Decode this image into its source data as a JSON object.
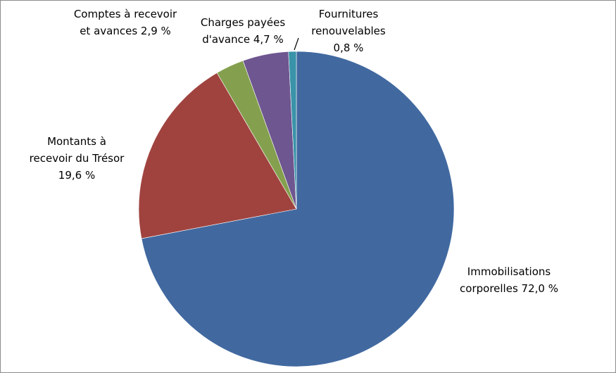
{
  "chart_data": {
    "type": "pie",
    "title": "",
    "slices": [
      {
        "name": "Immobilisations corporelles",
        "value": 72.0,
        "label_lines": [
          "Immobilisations",
          "corporelles 72,0 %"
        ],
        "color": "#4169A0"
      },
      {
        "name": "Montants à recevoir du Trésor",
        "value": 19.6,
        "label_lines": [
          "Montants à",
          "recevoir du Trésor",
          "19,6 %"
        ],
        "color": "#A0433F"
      },
      {
        "name": "Comptes à recevoir et avances",
        "value": 2.9,
        "label_lines": [
          "Comptes à recevoir",
          "et avances 2,9 %"
        ],
        "color": "#84A04E"
      },
      {
        "name": "Charges payées d'avance",
        "value": 4.7,
        "label_lines": [
          "Charges payées",
          "d'avance 4,7 %"
        ],
        "color": "#6E5690"
      },
      {
        "name": "Fournitures renouvelables",
        "value": 0.8,
        "label_lines": [
          "Fournitures",
          "renouvelables",
          "0,8 %"
        ],
        "color": "#3A93A8"
      }
    ],
    "legend": "none",
    "label_position": "outside"
  }
}
